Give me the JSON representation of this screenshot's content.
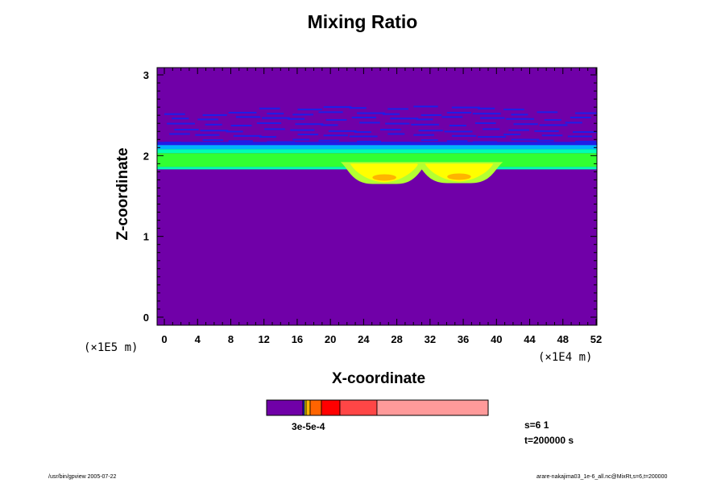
{
  "chart_data": {
    "type": "heatmap",
    "title": "Mixing Ratio",
    "xlabel": "X-coordinate",
    "ylabel": "Z-coordinate",
    "x_unit": "(×1E4 m)",
    "y_unit": "(×1E5 m)",
    "xlim": [
      0,
      52
    ],
    "ylim": [
      0,
      3
    ],
    "x_ticks": [
      "0",
      "4",
      "8",
      "12",
      "16",
      "20",
      "24",
      "28",
      "32",
      "36",
      "40",
      "44",
      "48",
      "52"
    ],
    "y_ticks": [
      "0",
      "1",
      "2",
      "3"
    ],
    "colormap": [
      "#7000a8",
      "#1e1ee8",
      "#00b4ff",
      "#00ffb4",
      "#32ff32",
      "#b4ff32",
      "#ffff00",
      "#ffb400",
      "#ff6400",
      "#ff0000",
      "#ff4646",
      "#ff9a9a"
    ],
    "background_color": "#7000a8",
    "layers": [
      {
        "name": "upper-thin-bands",
        "z_bottom": 2.15,
        "z_top": 2.62,
        "color": "#1e1ee8"
      },
      {
        "name": "cyan-band",
        "z_bottom": 2.03,
        "z_top": 2.15,
        "color": "#00b4ff"
      },
      {
        "name": "green-band",
        "z_bottom": 1.85,
        "z_top": 2.03,
        "color": "#32ff32"
      }
    ],
    "bulges": [
      {
        "x": 26.5,
        "z_min": 1.65,
        "color": "#ffff00"
      },
      {
        "x": 35.5,
        "z_min": 1.66,
        "color": "#ffff00"
      }
    ],
    "colorbar_tick_labels": [
      "3e-5",
      "1e-4"
    ],
    "colorbar_label_rendered": "3e-5e-4"
  },
  "info": {
    "s_text": "s=6 1",
    "t_text": "t=200000 s"
  },
  "footer": {
    "left": "/usr/bin/gpview 2005-07-22",
    "right": "arare-nakajima03_1e-6_all.nc@MixRt,s=6,t=200000"
  }
}
